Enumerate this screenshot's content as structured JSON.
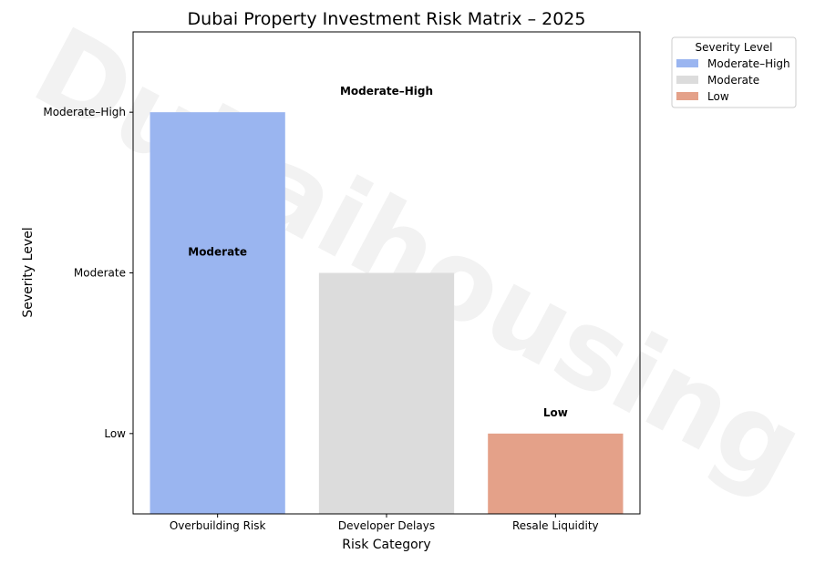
{
  "chart_data": {
    "type": "bar",
    "title": "Dubai Property Investment Risk Matrix – 2025",
    "xlabel": "Risk Category",
    "ylabel": "Severity Level",
    "categories": [
      "Overbuilding Risk",
      "Developer Delays",
      "Resale Liquidity"
    ],
    "values": [
      3,
      2,
      1
    ],
    "ylim": [
      0.5,
      3.5
    ],
    "y_ticks": [
      {
        "value": 1,
        "label": "Low"
      },
      {
        "value": 2,
        "label": "Moderate"
      },
      {
        "value": 3,
        "label": "Moderate–High"
      }
    ],
    "bar_colors": [
      "#9ab5f0",
      "#dcdcdc",
      "#e4a189"
    ],
    "annotations": [
      {
        "text": "Moderate–High",
        "x": 1,
        "y": 3.13
      },
      {
        "text": "Moderate",
        "x": 0,
        "y": 2.13
      },
      {
        "text": "Low",
        "x": 2,
        "y": 1.13
      }
    ],
    "legend": {
      "title": "Severity Level",
      "placement": "outside-top-right",
      "entries": [
        {
          "label": "Moderate–High",
          "color": "#9ab5f0"
        },
        {
          "label": "Moderate",
          "color": "#dcdcdc"
        },
        {
          "label": "Low",
          "color": "#e4a189"
        }
      ]
    },
    "grid": false,
    "watermark": "Dubaihousing"
  }
}
